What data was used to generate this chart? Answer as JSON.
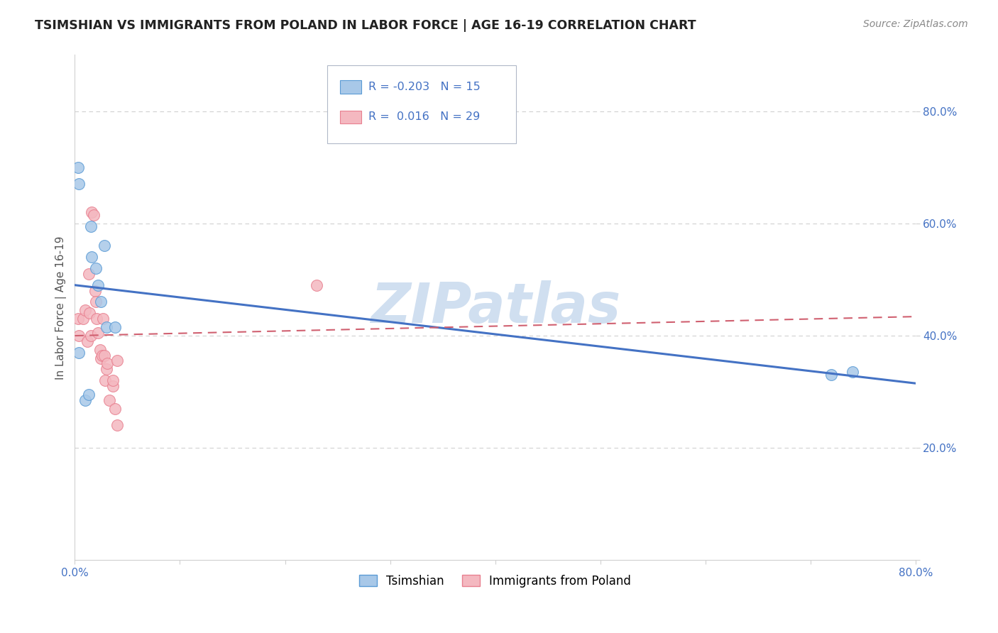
{
  "title": "TSIMSHIAN VS IMMIGRANTS FROM POLAND IN LABOR FORCE | AGE 16-19 CORRELATION CHART",
  "source_text": "Source: ZipAtlas.com",
  "ylabel": "In Labor Force | Age 16-19",
  "xlim": [
    0.0,
    0.8
  ],
  "ylim": [
    0.0,
    0.9
  ],
  "xticks": [
    0.0,
    0.1,
    0.2,
    0.3,
    0.4,
    0.5,
    0.6,
    0.7,
    0.8
  ],
  "xticklabels": [
    "0.0%",
    "",
    "",
    "",
    "",
    "",
    "",
    "",
    "80.0%"
  ],
  "yticks": [
    0.0,
    0.2,
    0.4,
    0.6,
    0.8
  ],
  "yticklabels": [
    "",
    "20.0%",
    "40.0%",
    "60.0%",
    "80.0%"
  ],
  "blue_x": [
    0.003,
    0.004,
    0.015,
    0.016,
    0.02,
    0.022,
    0.025,
    0.028,
    0.03,
    0.038,
    0.01,
    0.013,
    0.72,
    0.74,
    0.004
  ],
  "blue_y": [
    0.7,
    0.67,
    0.595,
    0.54,
    0.52,
    0.49,
    0.46,
    0.56,
    0.415,
    0.415,
    0.285,
    0.295,
    0.33,
    0.335,
    0.37
  ],
  "pink_x": [
    0.003,
    0.004,
    0.008,
    0.01,
    0.012,
    0.013,
    0.014,
    0.015,
    0.016,
    0.018,
    0.019,
    0.02,
    0.021,
    0.022,
    0.024,
    0.025,
    0.026,
    0.027,
    0.028,
    0.029,
    0.03,
    0.031,
    0.033,
    0.036,
    0.038,
    0.04,
    0.23,
    0.04,
    0.036
  ],
  "pink_y": [
    0.43,
    0.4,
    0.43,
    0.445,
    0.39,
    0.51,
    0.44,
    0.4,
    0.62,
    0.615,
    0.48,
    0.46,
    0.43,
    0.405,
    0.375,
    0.36,
    0.365,
    0.43,
    0.365,
    0.32,
    0.34,
    0.35,
    0.285,
    0.31,
    0.27,
    0.24,
    0.49,
    0.355,
    0.32
  ],
  "blue_R": -0.203,
  "blue_N": 15,
  "pink_R": 0.016,
  "pink_N": 29,
  "blue_color": "#a8c8e8",
  "blue_edge_color": "#5b9bd5",
  "pink_color": "#f4b8c0",
  "pink_edge_color": "#e88090",
  "watermark_text": "ZIPatlas",
  "watermark_color": "#d0dff0",
  "legend_label_blue": "Tsimshian",
  "legend_label_pink": "Immigrants from Poland",
  "blue_line_color": "#4472c4",
  "pink_line_color": "#d06070",
  "background_color": "#ffffff",
  "grid_color": "#d0d0d0",
  "tick_color": "#4472c4",
  "title_color": "#222222",
  "source_color": "#888888",
  "ylabel_color": "#555555"
}
